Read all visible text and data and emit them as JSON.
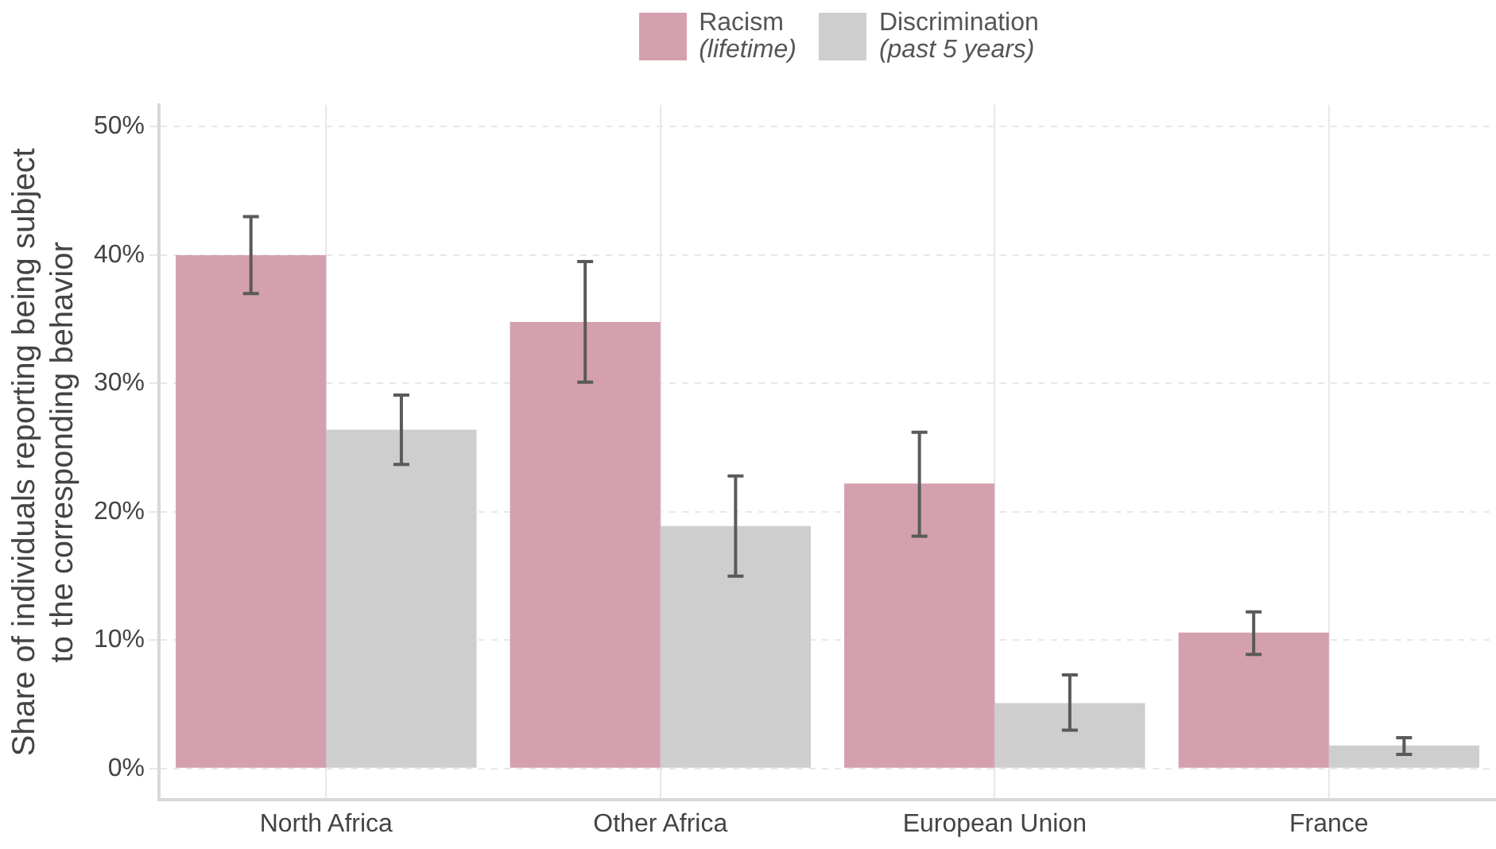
{
  "chart_data": {
    "type": "bar",
    "ylabel": "Share of individuals reporting being subject\nto the corresponding behavior",
    "categories": [
      "North Africa",
      "Other Africa",
      "European Union",
      "France"
    ],
    "series": [
      {
        "name": "Racism\n(lifetime)",
        "color": "#d4a0ae",
        "values": [
          40.0,
          34.8,
          22.2,
          10.6
        ],
        "errors": [
          [
            37.0,
            43.0
          ],
          [
            30.1,
            39.5
          ],
          [
            18.1,
            26.2
          ],
          [
            8.9,
            12.2
          ]
        ]
      },
      {
        "name": "Discrimination\n(past 5 years)",
        "color": "#cecece",
        "values": [
          26.4,
          18.9,
          5.1,
          1.8
        ],
        "errors": [
          [
            23.7,
            29.1
          ],
          [
            15.0,
            22.8
          ],
          [
            3.0,
            7.3
          ],
          [
            1.1,
            2.4
          ]
        ]
      }
    ],
    "ylim": [
      -2.4,
      51.7
    ],
    "yticks": [
      {
        "value": 0,
        "label": "0%"
      },
      {
        "value": 10,
        "label": "10%"
      },
      {
        "value": 20,
        "label": "20%"
      },
      {
        "value": 30,
        "label": "30%"
      },
      {
        "value": 40,
        "label": "40%"
      },
      {
        "value": 50,
        "label": "50%"
      }
    ],
    "grid": true,
    "legend": "top"
  }
}
